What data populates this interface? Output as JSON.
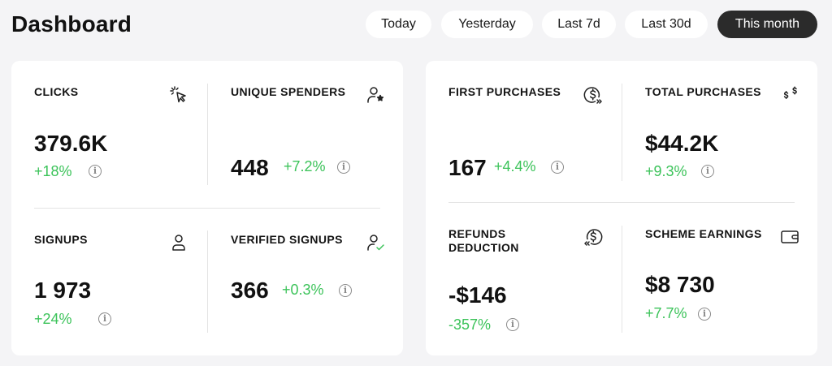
{
  "page_title": "Dashboard",
  "ranges": [
    "Today",
    "Yesterday",
    "Last 7d",
    "Last 30d",
    "This month"
  ],
  "active_range": "This month",
  "accent_green": "#3cc35a",
  "metrics": {
    "clicks": {
      "label": "CLICKS",
      "value": "379.6K",
      "change": "+18%",
      "icon": "cursor-click-icon"
    },
    "unique_spenders": {
      "label": "UNIQUE SPENDERS",
      "value": "448",
      "change": "+7.2%",
      "icon": "user-star-icon"
    },
    "signups": {
      "label": "SIGNUPS",
      "value": "1 973",
      "change": "+24%",
      "icon": "user-icon"
    },
    "verified_signups": {
      "label": "VERIFIED SIGNUPS",
      "value": "366",
      "change": "+0.3%",
      "icon": "user-check-icon"
    },
    "first_purchases": {
      "label": "FIRST PURCHASES",
      "value": "167",
      "change": "+4.4%",
      "icon": "coin-forward-icon"
    },
    "total_purchases": {
      "label": "TOTAL PURCHASES",
      "value": "$44.2K",
      "change": "+9.3%",
      "icon": "dollars-icon"
    },
    "refunds_deduction": {
      "label": "REFUNDS DEDUCTION",
      "value": "-$146",
      "change": "-357%",
      "icon": "coin-back-icon"
    },
    "scheme_earnings": {
      "label": "SCHEME EARNINGS",
      "value": "$8 730",
      "change": "+7.7%",
      "icon": "wallet-icon"
    }
  }
}
